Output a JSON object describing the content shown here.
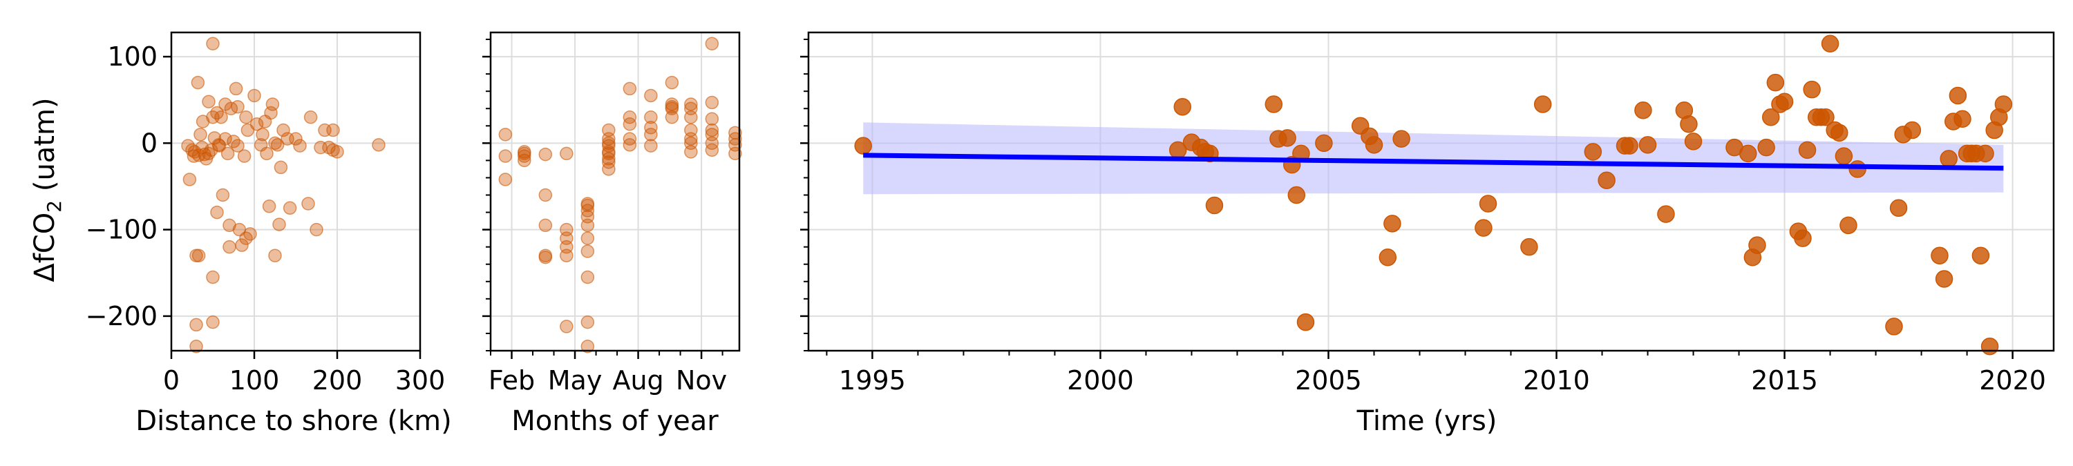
{
  "figure": {
    "ylabel_prefix": "ΔfCO",
    "ylabel_sub": "2",
    "ylabel_suffix": " (uatm)"
  },
  "colors": {
    "point": "#cc5500",
    "trend_line": "#0000ff",
    "confidence_band": "#b8b8ff"
  },
  "chart_data": [
    {
      "type": "scatter",
      "xlabel": "Distance to shore (km)",
      "ylabel": "ΔfCO2 (uatm)",
      "xlim": [
        0,
        300
      ],
      "ylim": [
        -240,
        128
      ],
      "xticks": [
        0,
        100,
        200,
        300
      ],
      "xtick_labels": [
        "0",
        "100",
        "200",
        "300"
      ],
      "yticks": [
        -200,
        -100,
        0,
        100
      ],
      "ytick_labels": [
        "−200",
        "−100",
        "0",
        "100"
      ],
      "grid": true,
      "points": [
        [
          20,
          -3
        ],
        [
          22,
          -42
        ],
        [
          25,
          -8
        ],
        [
          27,
          -15
        ],
        [
          28,
          -10
        ],
        [
          30,
          -130
        ],
        [
          30,
          -210
        ],
        [
          30,
          -235
        ],
        [
          32,
          70
        ],
        [
          33,
          -14
        ],
        [
          33,
          -130
        ],
        [
          35,
          10
        ],
        [
          37,
          -5
        ],
        [
          38,
          25
        ],
        [
          40,
          -13
        ],
        [
          42,
          -18
        ],
        [
          45,
          48
        ],
        [
          45,
          -12
        ],
        [
          48,
          -8
        ],
        [
          50,
          30
        ],
        [
          50,
          115
        ],
        [
          50,
          -155
        ],
        [
          50,
          -207
        ],
        [
          52,
          6
        ],
        [
          55,
          -80
        ],
        [
          55,
          35
        ],
        [
          57,
          -2
        ],
        [
          58,
          -3
        ],
        [
          60,
          30
        ],
        [
          62,
          -60
        ],
        [
          65,
          45
        ],
        [
          65,
          5
        ],
        [
          68,
          -12
        ],
        [
          70,
          -95
        ],
        [
          70,
          -120
        ],
        [
          72,
          40
        ],
        [
          75,
          2
        ],
        [
          78,
          63
        ],
        [
          80,
          42
        ],
        [
          80,
          -3
        ],
        [
          82,
          -100
        ],
        [
          85,
          -118
        ],
        [
          88,
          -15
        ],
        [
          90,
          -110
        ],
        [
          90,
          30
        ],
        [
          92,
          15
        ],
        [
          95,
          -105
        ],
        [
          100,
          55
        ],
        [
          103,
          22
        ],
        [
          108,
          -2
        ],
        [
          110,
          10
        ],
        [
          113,
          25
        ],
        [
          115,
          -12
        ],
        [
          118,
          -73
        ],
        [
          120,
          35
        ],
        [
          122,
          45
        ],
        [
          125,
          0
        ],
        [
          125,
          -130
        ],
        [
          128,
          -2
        ],
        [
          130,
          -94
        ],
        [
          132,
          -28
        ],
        [
          135,
          15
        ],
        [
          140,
          5
        ],
        [
          143,
          -75
        ],
        [
          150,
          5
        ],
        [
          155,
          -3
        ],
        [
          165,
          -70
        ],
        [
          168,
          30
        ],
        [
          175,
          -100
        ],
        [
          180,
          -5
        ],
        [
          185,
          15
        ],
        [
          190,
          -5
        ],
        [
          195,
          15
        ],
        [
          195,
          -8
        ],
        [
          200,
          -10
        ],
        [
          250,
          -2
        ]
      ]
    },
    {
      "type": "scatter",
      "xlabel": "Months of year",
      "ylim": [
        -240,
        128
      ],
      "xlim": [
        1,
        12.8
      ],
      "xticks": [
        2,
        5,
        8,
        11
      ],
      "xtick_labels": [
        "Feb",
        "May",
        "Aug",
        "Nov"
      ],
      "grid": true,
      "points": [
        [
          1.7,
          10
        ],
        [
          1.7,
          -15
        ],
        [
          1.7,
          -42
        ],
        [
          2.6,
          -10
        ],
        [
          2.6,
          -12
        ],
        [
          2.6,
          -15
        ],
        [
          2.6,
          -20
        ],
        [
          3.6,
          -13
        ],
        [
          3.6,
          -60
        ],
        [
          3.6,
          -95
        ],
        [
          3.6,
          -130
        ],
        [
          3.6,
          -132
        ],
        [
          4.6,
          -12
        ],
        [
          4.6,
          -100
        ],
        [
          4.6,
          -110
        ],
        [
          4.6,
          -120
        ],
        [
          4.6,
          -130
        ],
        [
          4.6,
          -212
        ],
        [
          5.6,
          -70
        ],
        [
          5.6,
          -72
        ],
        [
          5.6,
          -78
        ],
        [
          5.6,
          -85
        ],
        [
          5.6,
          -95
        ],
        [
          5.6,
          -110
        ],
        [
          5.6,
          -125
        ],
        [
          5.6,
          -155
        ],
        [
          5.6,
          -207
        ],
        [
          5.6,
          -235
        ],
        [
          6.6,
          -3
        ],
        [
          6.6,
          -10
        ],
        [
          6.6,
          -12
        ],
        [
          6.6,
          -18
        ],
        [
          6.6,
          -22
        ],
        [
          6.6,
          -30
        ],
        [
          6.6,
          0
        ],
        [
          6.6,
          5
        ],
        [
          6.6,
          15
        ],
        [
          7.6,
          -2
        ],
        [
          7.6,
          5
        ],
        [
          7.6,
          22
        ],
        [
          7.6,
          30
        ],
        [
          7.6,
          63
        ],
        [
          8.6,
          -3
        ],
        [
          8.6,
          10
        ],
        [
          8.6,
          18
        ],
        [
          8.6,
          30
        ],
        [
          8.6,
          55
        ],
        [
          9.6,
          30
        ],
        [
          9.6,
          40
        ],
        [
          9.6,
          42
        ],
        [
          9.6,
          45
        ],
        [
          9.6,
          70
        ],
        [
          10.5,
          -10
        ],
        [
          10.5,
          0
        ],
        [
          10.5,
          5
        ],
        [
          10.5,
          15
        ],
        [
          10.5,
          30
        ],
        [
          10.5,
          40
        ],
        [
          10.5,
          45
        ],
        [
          11.5,
          -8
        ],
        [
          11.5,
          0
        ],
        [
          11.5,
          10
        ],
        [
          11.5,
          15
        ],
        [
          11.5,
          28
        ],
        [
          11.5,
          47
        ],
        [
          11.5,
          115
        ],
        [
          12.6,
          -12
        ],
        [
          12.6,
          -2
        ],
        [
          12.6,
          5
        ],
        [
          12.6,
          12
        ]
      ]
    },
    {
      "type": "scatter",
      "xlabel": "Time (yrs)",
      "xlim": [
        1993.6,
        2020.9
      ],
      "ylim": [
        -240,
        128
      ],
      "xticks": [
        1995,
        2000,
        2005,
        2010,
        2015,
        2020
      ],
      "xtick_labels": [
        "1995",
        "2000",
        "2005",
        "2010",
        "2015",
        "2020"
      ],
      "grid": true,
      "points": [
        [
          1994.8,
          -3
        ],
        [
          2001.7,
          -8
        ],
        [
          2001.8,
          42
        ],
        [
          2002.0,
          1
        ],
        [
          2002.2,
          -5
        ],
        [
          2002.3,
          -10
        ],
        [
          2002.4,
          -12
        ],
        [
          2002.5,
          -72
        ],
        [
          2003.8,
          45
        ],
        [
          2003.9,
          5
        ],
        [
          2004.1,
          6
        ],
        [
          2004.2,
          -25
        ],
        [
          2004.3,
          -60
        ],
        [
          2004.4,
          -12
        ],
        [
          2004.5,
          -207
        ],
        [
          2004.9,
          0
        ],
        [
          2005.7,
          20
        ],
        [
          2005.9,
          8
        ],
        [
          2006.0,
          -2
        ],
        [
          2006.3,
          -132
        ],
        [
          2006.4,
          -93
        ],
        [
          2006.6,
          5
        ],
        [
          2008.4,
          -98
        ],
        [
          2008.5,
          -70
        ],
        [
          2009.4,
          -120
        ],
        [
          2009.7,
          45
        ],
        [
          2010.8,
          -10
        ],
        [
          2011.1,
          -43
        ],
        [
          2011.5,
          -3
        ],
        [
          2011.6,
          -3
        ],
        [
          2011.9,
          38
        ],
        [
          2012.0,
          -2
        ],
        [
          2012.4,
          -82
        ],
        [
          2012.8,
          38
        ],
        [
          2012.9,
          22
        ],
        [
          2013.0,
          2
        ],
        [
          2013.9,
          -5
        ],
        [
          2014.2,
          -12
        ],
        [
          2014.3,
          -132
        ],
        [
          2014.4,
          -118
        ],
        [
          2014.6,
          -5
        ],
        [
          2014.7,
          30
        ],
        [
          2014.8,
          70
        ],
        [
          2014.9,
          45
        ],
        [
          2015.0,
          48
        ],
        [
          2015.3,
          -102
        ],
        [
          2015.4,
          -110
        ],
        [
          2015.5,
          -8
        ],
        [
          2015.6,
          62
        ],
        [
          2015.7,
          30
        ],
        [
          2015.8,
          30
        ],
        [
          2015.9,
          30
        ],
        [
          2016.0,
          115
        ],
        [
          2016.1,
          15
        ],
        [
          2016.2,
          12
        ],
        [
          2016.3,
          -15
        ],
        [
          2016.4,
          -95
        ],
        [
          2016.6,
          -30
        ],
        [
          2017.4,
          -212
        ],
        [
          2017.5,
          -75
        ],
        [
          2017.6,
          10
        ],
        [
          2017.8,
          15
        ],
        [
          2018.4,
          -130
        ],
        [
          2018.5,
          -157
        ],
        [
          2018.6,
          -18
        ],
        [
          2018.7,
          25
        ],
        [
          2018.8,
          55
        ],
        [
          2018.9,
          28
        ],
        [
          2019.0,
          -12
        ],
        [
          2019.1,
          -12
        ],
        [
          2019.2,
          -12
        ],
        [
          2019.3,
          -130
        ],
        [
          2019.4,
          -12
        ],
        [
          2019.5,
          -235
        ],
        [
          2019.6,
          15
        ],
        [
          2019.7,
          30
        ],
        [
          2019.8,
          45
        ]
      ],
      "trend": {
        "x": [
          1994.8,
          2019.8
        ],
        "y": [
          -14,
          -29
        ]
      },
      "band": {
        "x": [
          1994.8,
          2019.8
        ],
        "upper": [
          24,
          -2
        ],
        "lower": [
          -59,
          -57
        ]
      }
    }
  ]
}
